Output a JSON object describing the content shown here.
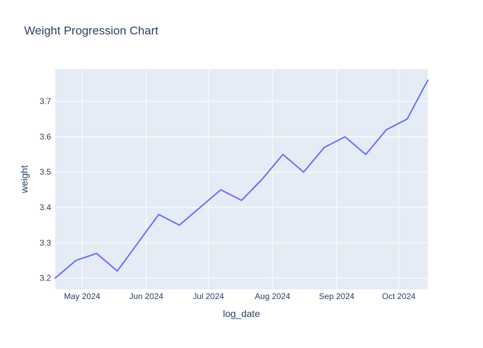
{
  "chart_data": {
    "type": "line",
    "title": "Weight Progression Chart",
    "xlabel": "log_date",
    "ylabel": "weight",
    "x_type": "date",
    "xlim": [
      "2024-04-18",
      "2024-10-15"
    ],
    "ylim": [
      3.168,
      3.792
    ],
    "x_ticks": [
      {
        "value": "2024-05-01",
        "label": "May 2024"
      },
      {
        "value": "2024-06-01",
        "label": "Jun 2024"
      },
      {
        "value": "2024-07-01",
        "label": "Jul 2024"
      },
      {
        "value": "2024-08-01",
        "label": "Aug 2024"
      },
      {
        "value": "2024-09-01",
        "label": "Sep 2024"
      },
      {
        "value": "2024-10-01",
        "label": "Oct 2024"
      }
    ],
    "y_ticks": [
      {
        "value": 3.2,
        "label": "3.2"
      },
      {
        "value": 3.3,
        "label": "3.3"
      },
      {
        "value": 3.4,
        "label": "3.4"
      },
      {
        "value": 3.5,
        "label": "3.5"
      },
      {
        "value": 3.6,
        "label": "3.6"
      },
      {
        "value": 3.7,
        "label": "3.7"
      }
    ],
    "grid": true,
    "legend": false,
    "series": [
      {
        "color": "#636efa",
        "points": [
          {
            "x": "2024-04-18",
            "y": 3.2
          },
          {
            "x": "2024-04-28",
            "y": 3.25
          },
          {
            "x": "2024-05-08",
            "y": 3.27
          },
          {
            "x": "2024-05-18",
            "y": 3.22
          },
          {
            "x": "2024-05-28",
            "y": 3.3
          },
          {
            "x": "2024-06-07",
            "y": 3.38
          },
          {
            "x": "2024-06-17",
            "y": 3.35
          },
          {
            "x": "2024-06-27",
            "y": 3.4
          },
          {
            "x": "2024-07-07",
            "y": 3.45
          },
          {
            "x": "2024-07-17",
            "y": 3.42
          },
          {
            "x": "2024-07-27",
            "y": 3.48
          },
          {
            "x": "2024-08-06",
            "y": 3.55
          },
          {
            "x": "2024-08-16",
            "y": 3.5
          },
          {
            "x": "2024-08-26",
            "y": 3.57
          },
          {
            "x": "2024-09-05",
            "y": 3.6
          },
          {
            "x": "2024-09-15",
            "y": 3.55
          },
          {
            "x": "2024-09-25",
            "y": 3.62
          },
          {
            "x": "2024-10-05",
            "y": 3.65
          },
          {
            "x": "2024-10-15",
            "y": 3.76
          }
        ]
      }
    ],
    "colors": {
      "plot_background": "#e5ecf6",
      "grid": "#ffffff",
      "text": "#2a3f5f",
      "line": "#636efa"
    }
  }
}
